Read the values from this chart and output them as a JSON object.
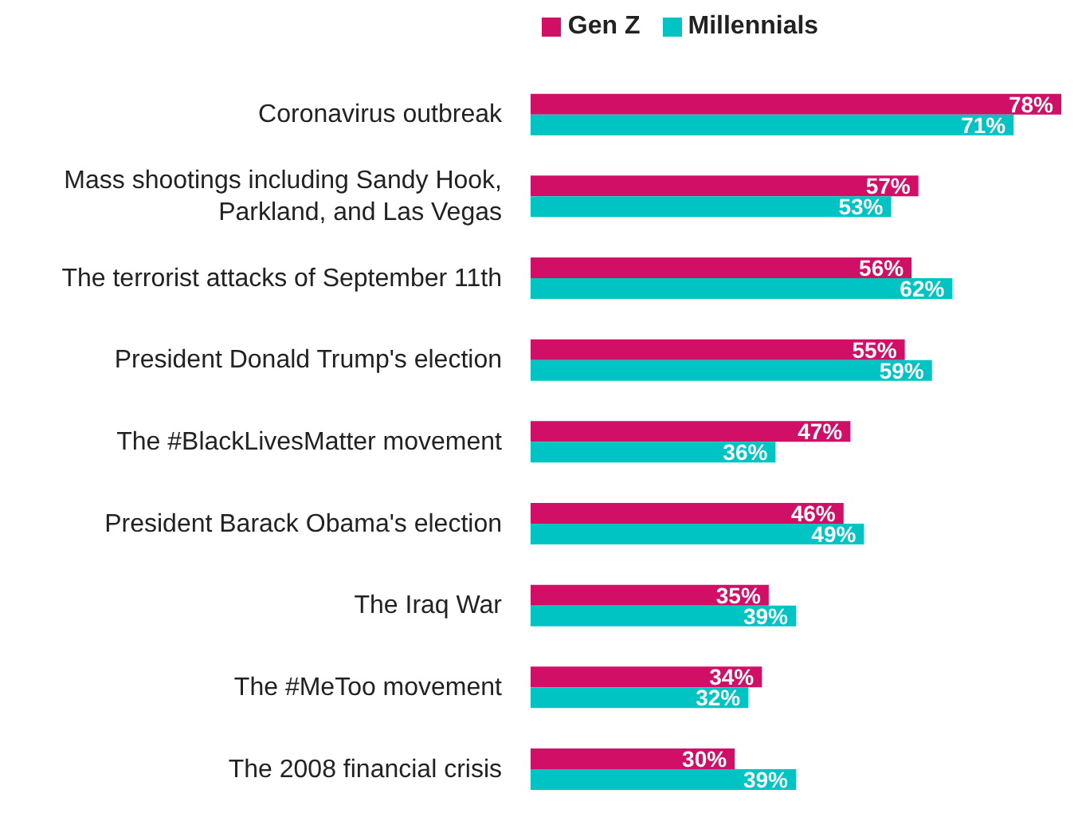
{
  "chart_data": {
    "type": "bar",
    "orientation": "horizontal",
    "legend": "top",
    "categories": [
      "Coronavirus outbreak",
      "Mass shootings including Sandy Hook, Parkland, and Las Vegas",
      "The terrorist attacks of September 11th",
      "President Donald Trump's election",
      "The #BlackLivesMatter movement",
      "President Barack Obama's election",
      "The Iraq War",
      "The #MeToo movement",
      "The 2008 financial crisis"
    ],
    "series": [
      {
        "name": "Gen Z",
        "color": "#d10f67",
        "values": [
          78,
          57,
          56,
          55,
          47,
          46,
          35,
          34,
          30
        ],
        "value_labels": [
          "78%",
          "57%",
          "56%",
          "55%",
          "47%",
          "46%",
          "35%",
          "34%",
          "30%"
        ]
      },
      {
        "name": "Millennials",
        "color": "#00c4c4",
        "values": [
          71,
          53,
          62,
          59,
          36,
          49,
          39,
          32,
          39
        ],
        "value_labels": [
          "71%",
          "53%",
          "62%",
          "59%",
          "36%",
          "49%",
          "39%",
          "32%",
          "39%"
        ]
      }
    ]
  }
}
